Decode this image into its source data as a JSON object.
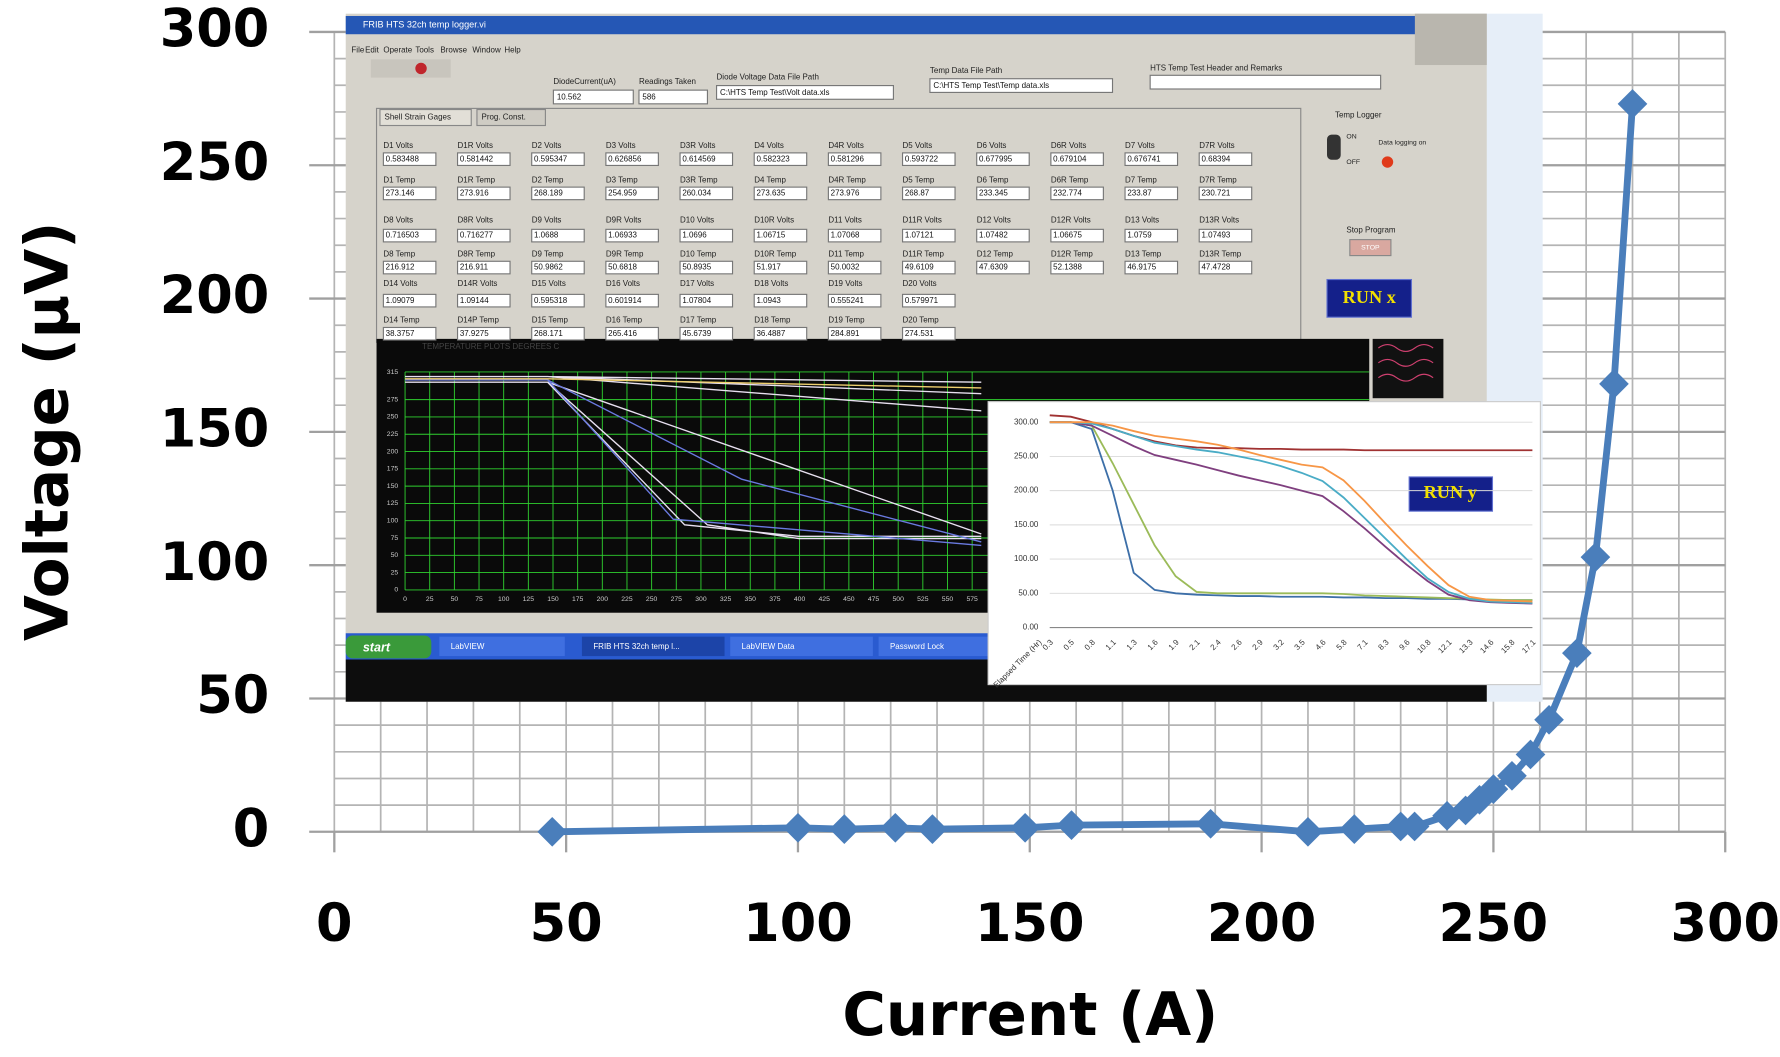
{
  "chart_data": [
    {
      "type": "line",
      "x_label": "Current (A)",
      "y_label": "Voltage (μV)",
      "xlim": [
        0,
        300
      ],
      "ylim": [
        0,
        300
      ],
      "xticks": [
        0,
        50,
        100,
        150,
        200,
        250,
        300
      ],
      "yticks": [
        0,
        50,
        100,
        150,
        200,
        250,
        300
      ],
      "grid": true,
      "grid_step": 10,
      "marker": "diamond",
      "series": [
        {
          "color": "#4a7ebb",
          "x": [
            47,
            100,
            110,
            121,
            129,
            149,
            159,
            189,
            210,
            220,
            230,
            233,
            240,
            244,
            247,
            250,
            254,
            258,
            262,
            268,
            272,
            276,
            280
          ],
          "values": [
            0,
            1.5,
            1,
            1.5,
            1,
            1.5,
            2.5,
            3,
            0,
            1,
            2,
            2,
            6,
            8,
            12,
            16,
            21,
            29,
            42,
            67,
            103,
            168,
            273
          ]
        }
      ]
    },
    {
      "type": "line",
      "x_label": "Elapsed Time (Hr)",
      "badge": "RUN y",
      "categories": [
        "0.3",
        "0.5",
        "0.8",
        "1.1",
        "1.3",
        "1.6",
        "1.9",
        "2.1",
        "2.4",
        "2.6",
        "2.9",
        "3.2",
        "3.5",
        "4.6",
        "5.8",
        "7.1",
        "8.3",
        "9.6",
        "10.8",
        "12.1",
        "13.3",
        "14.6",
        "15.8",
        "17.1"
      ],
      "ylim": [
        0,
        315
      ],
      "yticks": [
        {
          "value": 0,
          "label": "0.00"
        },
        {
          "value": 50,
          "label": "50.00"
        },
        {
          "value": 100,
          "label": "100.00"
        },
        {
          "value": 150,
          "label": "150.00"
        },
        {
          "value": 200,
          "label": "200.00"
        },
        {
          "value": 250,
          "label": "250.00"
        },
        {
          "value": 300,
          "label": "300.00"
        }
      ],
      "grid": true,
      "series": [
        {
          "color": "#a03232",
          "values": [
            310,
            308,
            300,
            290,
            280,
            272,
            266,
            263,
            262,
            262,
            261,
            261,
            260,
            260,
            260,
            259,
            259,
            259,
            259,
            259,
            259,
            259,
            259,
            259
          ]
        },
        {
          "color": "#3d6fa8",
          "values": [
            300,
            300,
            290,
            200,
            80,
            55,
            50,
            48,
            47,
            46,
            46,
            45,
            45,
            45,
            44,
            44,
            43,
            43,
            42,
            42,
            41,
            40,
            40,
            40
          ]
        },
        {
          "color": "#9bbb59",
          "values": [
            300,
            300,
            295,
            240,
            180,
            120,
            75,
            52,
            50,
            50,
            50,
            50,
            50,
            50,
            49,
            47,
            46,
            45,
            44,
            43,
            42,
            41,
            40,
            40
          ]
        },
        {
          "color": "#7f3f7f",
          "values": [
            300,
            300,
            295,
            280,
            265,
            252,
            245,
            238,
            230,
            222,
            215,
            208,
            200,
            192,
            170,
            145,
            118,
            92,
            68,
            48,
            40,
            37,
            36,
            35
          ]
        },
        {
          "color": "#4aacc6",
          "values": [
            300,
            300,
            298,
            290,
            280,
            270,
            265,
            260,
            256,
            250,
            244,
            236,
            226,
            214,
            190,
            160,
            130,
            100,
            72,
            52,
            42,
            38,
            37,
            36
          ]
        },
        {
          "color": "#f79646",
          "values": [
            300,
            300,
            300,
            295,
            287,
            280,
            276,
            272,
            267,
            260,
            252,
            245,
            238,
            234,
            215,
            185,
            152,
            120,
            90,
            62,
            45,
            40,
            39,
            38
          ]
        }
      ]
    }
  ],
  "screenshot": {
    "window_title": "FRIB HTS 32ch temp logger.vi",
    "menu": [
      "File",
      "Edit",
      "Operate",
      "Tools",
      "Browse",
      "Window",
      "Help"
    ],
    "header_fields": [
      {
        "label": "DiodeCurrent(uA)",
        "value": "10.562"
      },
      {
        "label": "Readings Taken",
        "value": "586"
      },
      {
        "label": "Diode Voltage Data File Path",
        "value": "C:\\HTS Temp Test\\Volt data.xls"
      },
      {
        "label": "Temp Data File Path",
        "value": "C:\\HTS Temp Test\\Temp data.xls"
      }
    ],
    "remarks_label": "HTS Temp Test Header and Remarks",
    "tabs": [
      "Shell Strain Gages",
      "Prog. Const."
    ],
    "field_rows": [
      [
        {
          "label": "D1 Volts",
          "value": "0.583488"
        },
        {
          "label": "D1R Volts",
          "value": "0.581442"
        },
        {
          "label": "D2 Volts",
          "value": "0.595347"
        },
        {
          "label": "D3 Volts",
          "value": "0.626856"
        },
        {
          "label": "D3R Volts",
          "value": "0.614569"
        },
        {
          "label": "D4 Volts",
          "value": "0.582323"
        },
        {
          "label": "D4R Volts",
          "value": "0.581296"
        },
        {
          "label": "D5 Volts",
          "value": "0.593722"
        },
        {
          "label": "D6 Volts",
          "value": "0.677995"
        },
        {
          "label": "D6R Volts",
          "value": "0.679104"
        },
        {
          "label": "D7 Volts",
          "value": "0.676741"
        },
        {
          "label": "D7R Volts",
          "value": "0.68394"
        }
      ],
      [
        {
          "label": "D1 Temp",
          "value": "273.146"
        },
        {
          "label": "D1R Temp",
          "value": "273.916"
        },
        {
          "label": "D2 Temp",
          "value": "268.189"
        },
        {
          "label": "D3 Temp",
          "value": "254.959"
        },
        {
          "label": "D3R Temp",
          "value": "260.034"
        },
        {
          "label": "D4 Temp",
          "value": "273.635"
        },
        {
          "label": "D4R Temp",
          "value": "273.976"
        },
        {
          "label": "D5 Temp",
          "value": "268.87"
        },
        {
          "label": "D6 Temp",
          "value": "233.345"
        },
        {
          "label": "D6R Temp",
          "value": "232.774"
        },
        {
          "label": "D7 Temp",
          "value": "233.87"
        },
        {
          "label": "D7R Temp",
          "value": "230.721"
        }
      ],
      [
        {
          "label": "D8 Volts",
          "value": "0.716503"
        },
        {
          "label": "D8R Volts",
          "value": "0.716277"
        },
        {
          "label": "D9 Volts",
          "value": "1.0688"
        },
        {
          "label": "D9R Volts",
          "value": "1.06933"
        },
        {
          "label": "D10 Volts",
          "value": "1.0696"
        },
        {
          "label": "D10R Volts",
          "value": "1.06715"
        },
        {
          "label": "D11 Volts",
          "value": "1.07068"
        },
        {
          "label": "D11R Volts",
          "value": "1.07121"
        },
        {
          "label": "D12 Volts",
          "value": "1.07482"
        },
        {
          "label": "D12R Volts",
          "value": "1.06675"
        },
        {
          "label": "D13 Volts",
          "value": "1.0759"
        },
        {
          "label": "D13R Volts",
          "value": "1.07493"
        }
      ],
      [
        {
          "label": "D8 Temp",
          "value": "216.912"
        },
        {
          "label": "D8R Temp",
          "value": "216.911"
        },
        {
          "label": "D9 Temp",
          "value": "50.9862"
        },
        {
          "label": "D9R Temp",
          "value": "50.6818"
        },
        {
          "label": "D10 Temp",
          "value": "50.8935"
        },
        {
          "label": "D10R Temp",
          "value": "51.917"
        },
        {
          "label": "D11 Temp",
          "value": "50.0032"
        },
        {
          "label": "D11R Temp",
          "value": "49.6109"
        },
        {
          "label": "D12 Temp",
          "value": "47.6309"
        },
        {
          "label": "D12R Temp",
          "value": "52.1388"
        },
        {
          "label": "D13 Temp",
          "value": "46.9175"
        },
        {
          "label": "D13R Temp",
          "value": "47.4728"
        }
      ],
      [
        {
          "label": "D14 Volts",
          "value": "1.09079"
        },
        {
          "label": "D14R Volts",
          "value": "1.09144"
        },
        {
          "label": "D15 Volts",
          "value": "0.595318"
        },
        {
          "label": "D16 Volts",
          "value": "0.601914"
        },
        {
          "label": "D17 Volts",
          "value": "1.07804"
        },
        {
          "label": "D18 Volts",
          "value": "1.0943"
        },
        {
          "label": "D19 Volts",
          "value": "0.555241"
        },
        {
          "label": "D20 Volts",
          "value": "0.579971"
        }
      ],
      [
        {
          "label": "D14 Temp",
          "value": "38.3757"
        },
        {
          "label": "D14P Temp",
          "value": "37.9275"
        },
        {
          "label": "D15 Temp",
          "value": "268.171"
        },
        {
          "label": "D16 Temp",
          "value": "265.416"
        },
        {
          "label": "D17 Temp",
          "value": "45.6739"
        },
        {
          "label": "D18 Temp",
          "value": "36.4887"
        },
        {
          "label": "D19 Temp",
          "value": "284.891"
        },
        {
          "label": "D20 Temp",
          "value": "274.531"
        }
      ]
    ],
    "temp_logger": "Temp Logger",
    "on": "ON",
    "off": "OFF",
    "data_logging": "Data logging on",
    "stop_label": "Stop Program",
    "stop_button": "STOP",
    "run_button": "RUN x",
    "plot_title": "TEMPERATURE PLOTS DEGREES C",
    "plot_yticks": [
      315,
      275,
      250,
      225,
      200,
      175,
      150,
      125,
      100,
      75,
      50,
      25,
      0
    ],
    "plot_xticks": [
      0,
      25,
      50,
      75,
      100,
      125,
      150,
      175,
      200,
      225,
      250,
      275,
      300,
      325,
      350,
      375,
      400,
      425,
      450,
      475,
      500,
      525,
      550,
      575
    ],
    "taskbar": [
      "start",
      "LabVIEW",
      "FRIB HTS 32ch temp l...",
      "LabVIEW Data",
      "Password Lock"
    ]
  }
}
